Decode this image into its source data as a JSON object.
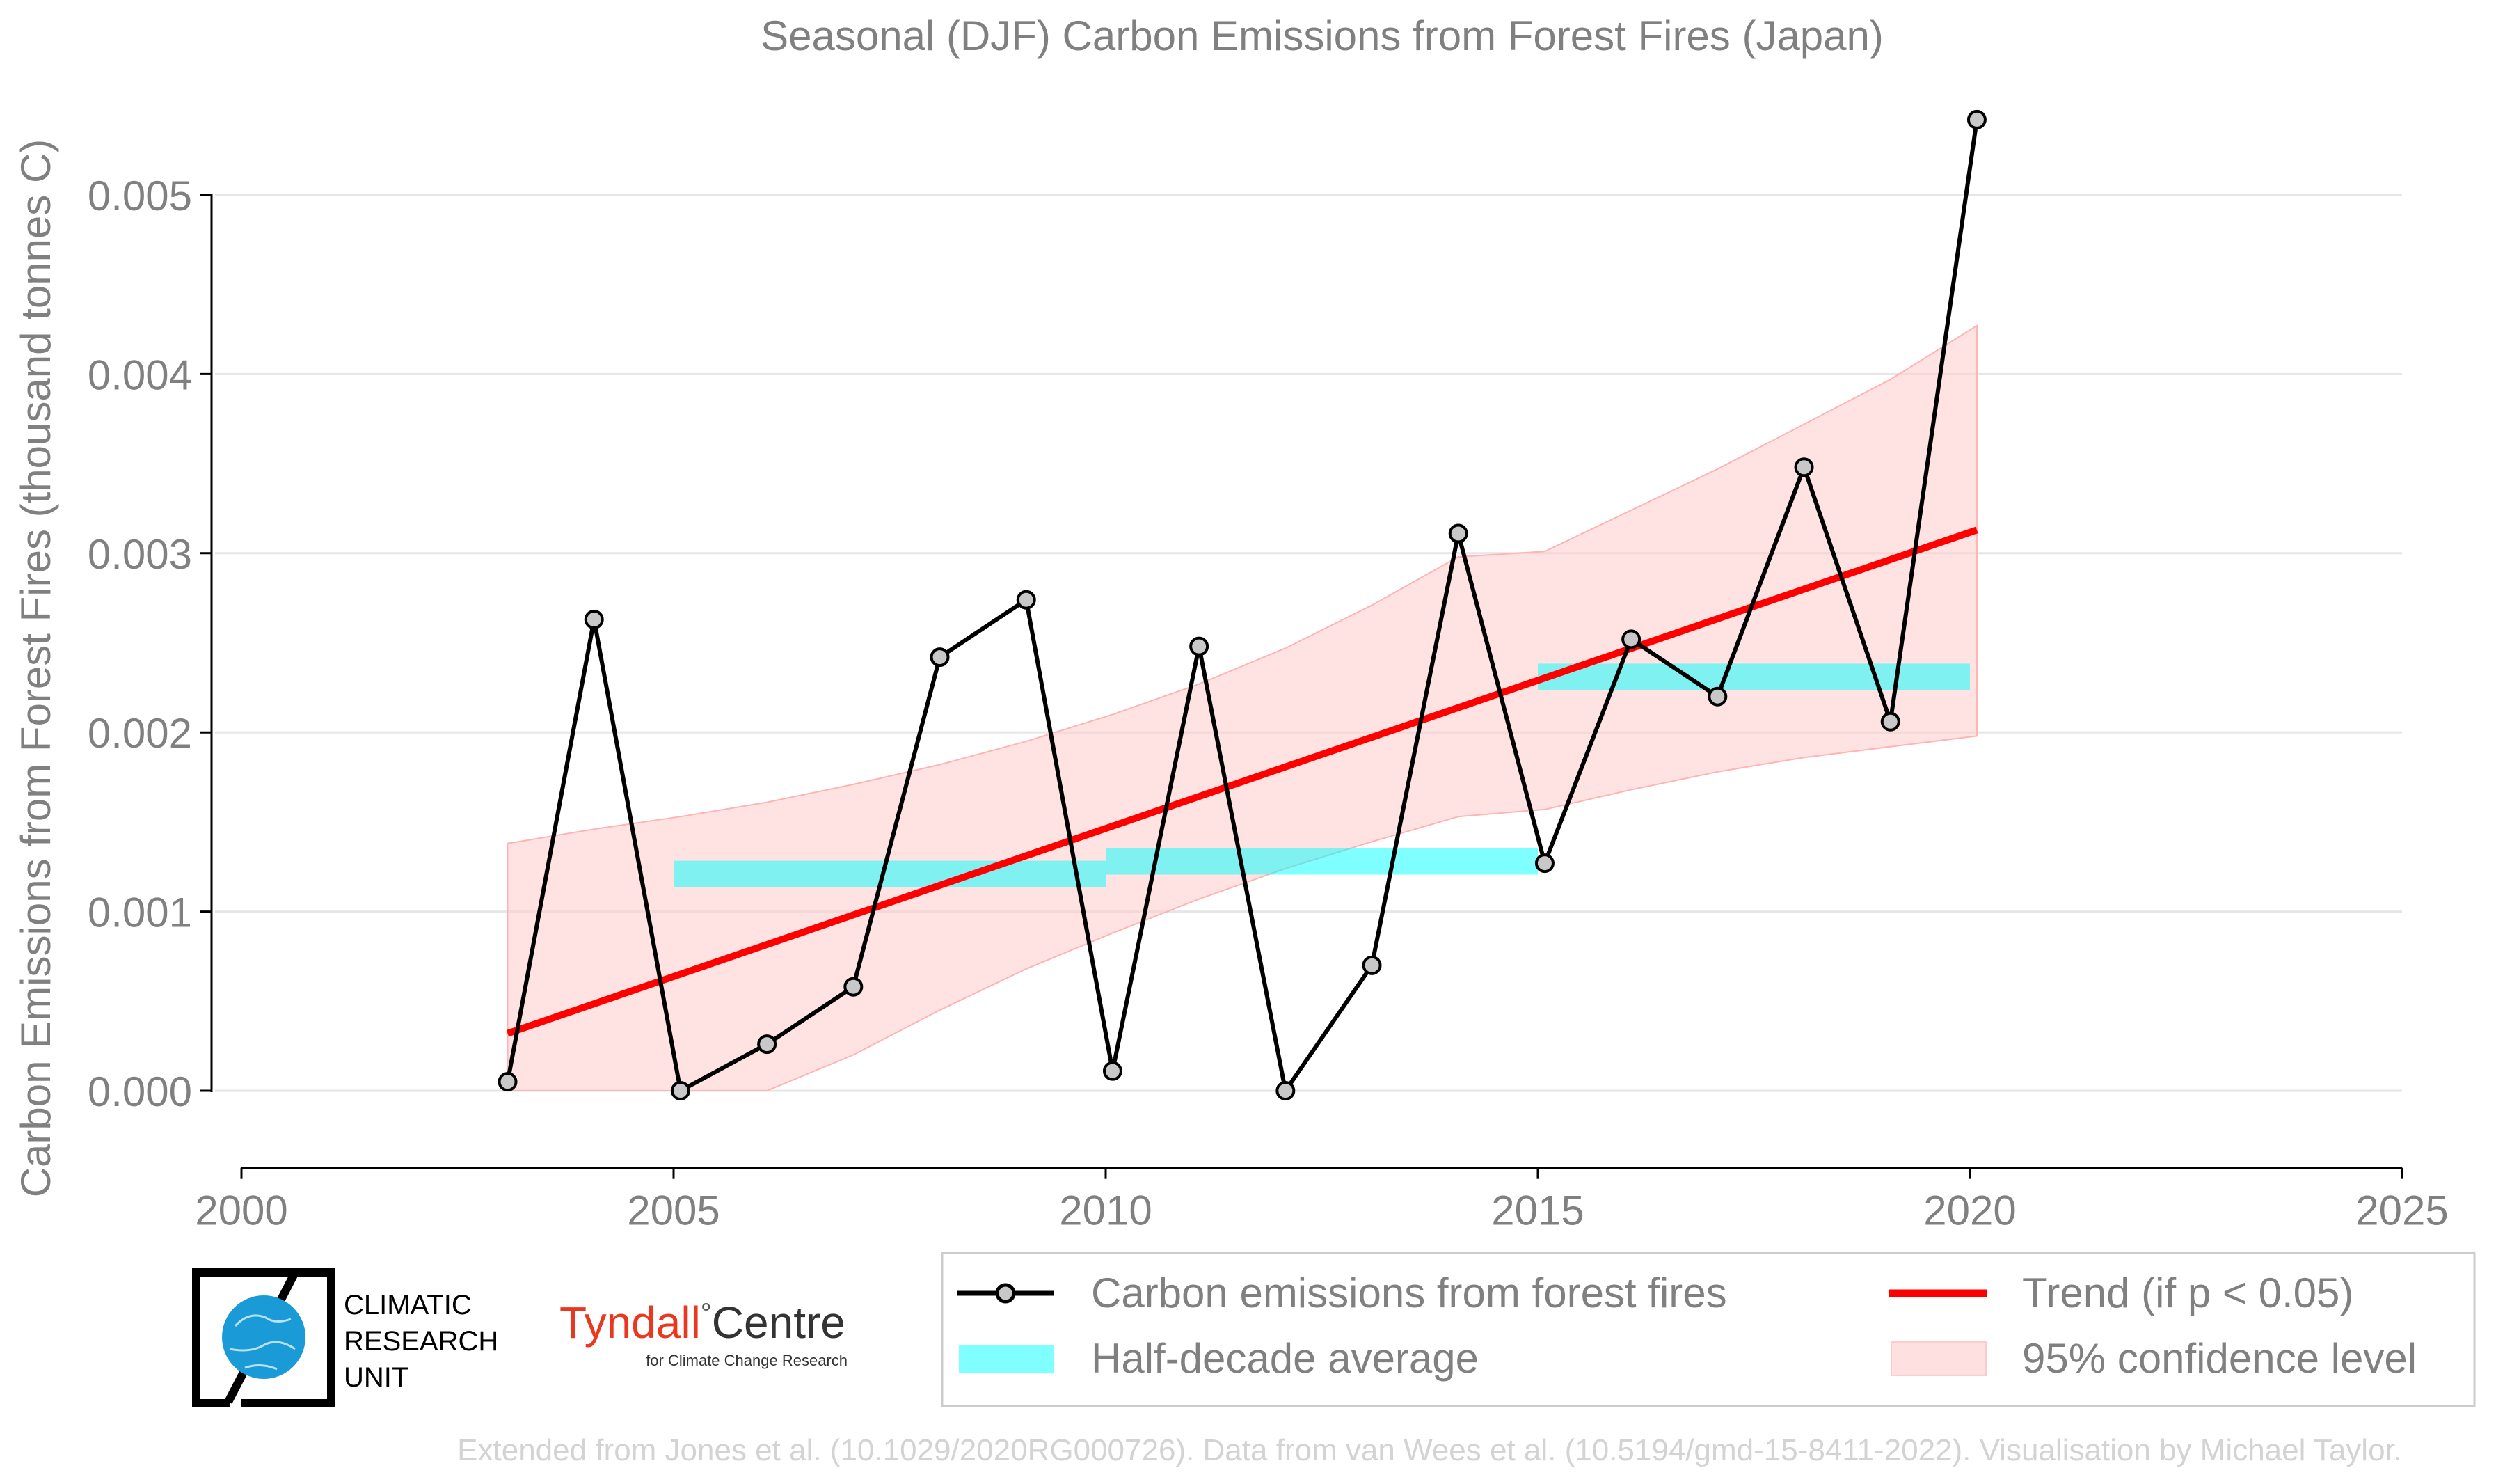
{
  "chart_data": {
    "type": "line",
    "title": "Seasonal (DJF) Carbon Emissions from Forest Fires (Japan)",
    "xlabel": "",
    "ylabel": "Carbon Emissions from Forest Fires (thousand tonnes C)",
    "xlim": [
      2000,
      2025
    ],
    "ylim": [
      -0.00043,
      0.0054
    ],
    "x_ticks": [
      "2000",
      "2005",
      "2010",
      "2015",
      "2020",
      "2025"
    ],
    "y_ticks": [
      "0.000",
      "0.001",
      "0.002",
      "0.003",
      "0.004",
      "0.005"
    ],
    "grid": true,
    "series": [
      {
        "name": "Carbon emissions from forest fires",
        "color": "#000000",
        "marker_fill": "#c8c8c8",
        "x": [
          2003,
          2004,
          2005,
          2006,
          2007,
          2008,
          2009,
          2010,
          2011,
          2012,
          2013,
          2014,
          2015,
          2016,
          2017,
          2018,
          2019,
          2020
        ],
        "y": [
          5e-05,
          0.00263,
          0.0,
          0.00026,
          0.00058,
          0.00242,
          0.00274,
          0.00011,
          0.00248,
          0.0,
          0.0007,
          0.00311,
          0.00127,
          0.00252,
          0.0022,
          0.00348,
          0.00206,
          0.00542
        ]
      }
    ],
    "half_decade_average": {
      "name": "Half-decade average",
      "color": "#00ffff",
      "segments": [
        {
          "x0": 2005,
          "x1": 2010,
          "y": 0.00121
        },
        {
          "x0": 2010,
          "x1": 2015,
          "y": 0.00128
        },
        {
          "x0": 2015,
          "x1": 2020,
          "y": 0.00231
        }
      ]
    },
    "trend": {
      "name": "Trend (if p < 0.05)",
      "color": "#ff0000",
      "x": [
        2003,
        2020
      ],
      "y": [
        0.00032,
        0.00313
      ]
    },
    "confidence": {
      "name": "95% confidence level",
      "color": "#ffcccc",
      "x": [
        2003,
        2004,
        2005,
        2006,
        2007,
        2008,
        2009,
        2010,
        2011,
        2012,
        2013,
        2014,
        2015,
        2016,
        2017,
        2018,
        2019,
        2020
      ],
      "upper": [
        0.00138,
        0.00146,
        0.00153,
        0.00161,
        0.00171,
        0.00182,
        0.00195,
        0.0021,
        0.00227,
        0.00247,
        0.00271,
        0.00298,
        0.00301,
        0.00324,
        0.00347,
        0.00372,
        0.00397,
        0.00427
      ],
      "lower": [
        0.0,
        0.0,
        0.0,
        0.0,
        0.0002,
        0.00045,
        0.00068,
        0.00088,
        0.00107,
        0.00124,
        0.00139,
        0.00153,
        0.00157,
        0.00168,
        0.00178,
        0.00186,
        0.00192,
        0.00198
      ]
    }
  },
  "legend": {
    "items": [
      {
        "label": "Carbon emissions from forest fires"
      },
      {
        "label": "Trend (if p < 0.05)"
      },
      {
        "label": "Half-decade average"
      },
      {
        "label": "95% confidence level"
      }
    ]
  },
  "logos": {
    "cru": {
      "line1": "CLIMATIC",
      "line2": "RESEARCH",
      "line3": "UNIT",
      "globe_color": "#1a9ad6"
    },
    "tyndall": {
      "brand": "Tyndall",
      "degree": "°",
      "centre": "Centre",
      "tagline": "for Climate Change Research",
      "brand_color": "#e8381f"
    }
  },
  "footer": {
    "credit": "Extended from Jones et al. (10.1029/2020RG000726). Data from van Wees et al. (10.5194/gmd-15-8411-2022). Visualisation by Michael Taylor."
  },
  "colors": {
    "text_gray": "#808080",
    "grid": "#e6e6e6",
    "footer": "#d3d3d3"
  }
}
